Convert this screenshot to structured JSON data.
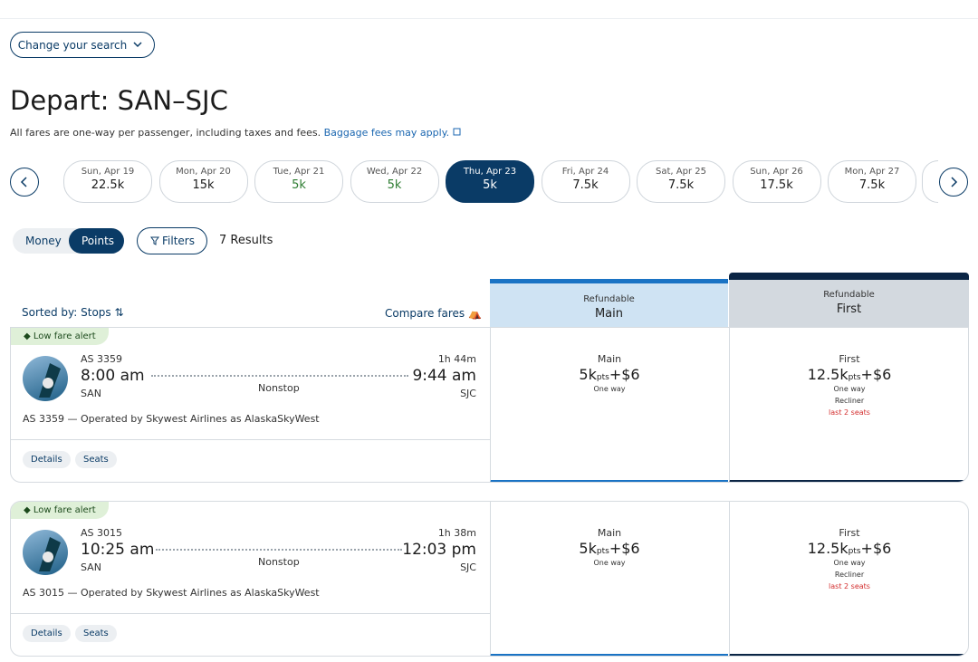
{
  "search_button": "Change your search",
  "title": "Depart: SAN–SJC",
  "subtitle": "All fares are one-way per passenger, including taxes and fees.",
  "baggage_link": "Baggage fees may apply.",
  "dates": [
    {
      "day": "Sun, Apr 19",
      "price": "22.5k"
    },
    {
      "day": "Mon, Apr 20",
      "price": "15k"
    },
    {
      "day": "Tue, Apr 21",
      "price": "5k",
      "color": "#2e7d32"
    },
    {
      "day": "Wed, Apr 22",
      "price": "5k",
      "color": "#2e7d32"
    },
    {
      "day": "Thu, Apr 23",
      "price": "5k",
      "selected": true
    },
    {
      "day": "Fri, Apr 24",
      "price": "7.5k"
    },
    {
      "day": "Sat, Apr 25",
      "price": "7.5k"
    },
    {
      "day": "Sun, Apr 26",
      "price": "17.5k"
    },
    {
      "day": "Mon, Apr 27",
      "price": "7.5k"
    }
  ],
  "toggle": [
    "Money",
    "Points"
  ],
  "filters": "Filters",
  "results": "7 Results",
  "sorted_by": "Sorted by: Stops",
  "compare": "Compare fares",
  "fare_columns": [
    {
      "tag": "Refundable",
      "name": "Main",
      "background": "#cfe3f3",
      "accent": "#1a73c4"
    },
    {
      "tag": "Refundable",
      "name": "First",
      "background": "#d3d9df",
      "accent": "#0b2545"
    }
  ],
  "flights": [
    {
      "alert": "Low fare alert",
      "flight": "AS 3359",
      "depart": "8:00 am",
      "origin": "SAN",
      "duration": "1h 44m",
      "arrive": "9:44 am",
      "destination": "SJC",
      "stops": "Nonstop",
      "operated": "AS 3359 — Operated by Skywest Airlines as AlaskaSkyWest",
      "actions": [
        "Details",
        "Seats"
      ],
      "fares": [
        {
          "cabin": "Main",
          "points": "5k",
          "unit": "pts",
          "cash": "+$6",
          "note": "One way"
        },
        {
          "cabin": "First",
          "points": "12.5k",
          "unit": "pts",
          "cash": "+$6",
          "note": "One way",
          "seat": "Recliner",
          "warning": "last 2 seats"
        }
      ]
    },
    {
      "alert": "Low fare alert",
      "flight": "AS 3015",
      "depart": "10:25 am",
      "origin": "SAN",
      "duration": "1h 38m",
      "arrive": "12:03 pm",
      "destination": "SJC",
      "stops": "Nonstop",
      "operated": "AS 3015 — Operated by Skywest Airlines as AlaskaSkyWest",
      "actions": [
        "Details",
        "Seats"
      ],
      "fares": [
        {
          "cabin": "Main",
          "points": "5k",
          "unit": "pts",
          "cash": "+$6",
          "note": "One way"
        },
        {
          "cabin": "First",
          "points": "12.5k",
          "unit": "pts",
          "cash": "+$6",
          "note": "One way",
          "seat": "Recliner",
          "warning": "last 2 seats"
        }
      ]
    }
  ]
}
